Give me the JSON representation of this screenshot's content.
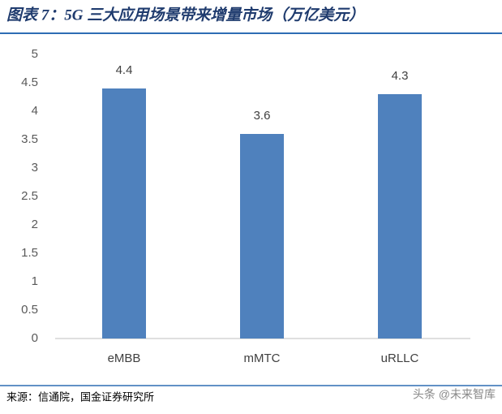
{
  "header": {
    "title": "图表 7：5G 三大应用场景带来增量市场（万亿美元）"
  },
  "chart_data": {
    "type": "bar",
    "categories": [
      "eMBB",
      "mMTC",
      "uRLLC"
    ],
    "values": [
      4.4,
      3.6,
      4.3
    ],
    "color": "#4f81bd",
    "ylim": [
      0,
      5
    ],
    "yticks": [
      0,
      0.5,
      1,
      1.5,
      2,
      2.5,
      3,
      3.5,
      4,
      4.5,
      5
    ]
  },
  "footer": {
    "source": "来源：信通院，国金证券研究所",
    "watermark": "头条 @未来智库"
  }
}
